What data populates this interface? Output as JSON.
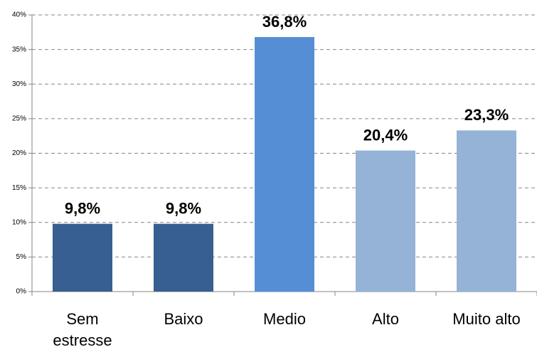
{
  "chart_data": {
    "type": "bar",
    "categories": [
      "Sem estresse",
      "Baixo",
      "Medio",
      "Alto",
      "Muito alto"
    ],
    "values": [
      9.8,
      9.8,
      36.8,
      20.4,
      23.3
    ],
    "value_labels": [
      "9,8%",
      "9,8%",
      "36,8%",
      "20,4%",
      "23,3%"
    ],
    "colors": [
      "#375f8f",
      "#375f8f",
      "#558ed5",
      "#95b3d7",
      "#95b3d7"
    ],
    "ylim": [
      0,
      40
    ],
    "yticks": [
      {
        "value": 0,
        "label": "0%"
      },
      {
        "value": 5,
        "label": "5%"
      },
      {
        "value": 10,
        "label": "10%"
      },
      {
        "value": 15,
        "label": "15%"
      },
      {
        "value": 20,
        "label": "20%"
      },
      {
        "value": 25,
        "label": "25%"
      },
      {
        "value": 30,
        "label": "30%"
      },
      {
        "value": 35,
        "label": "35%"
      },
      {
        "value": 40,
        "label": "40%"
      }
    ],
    "grid": true
  }
}
